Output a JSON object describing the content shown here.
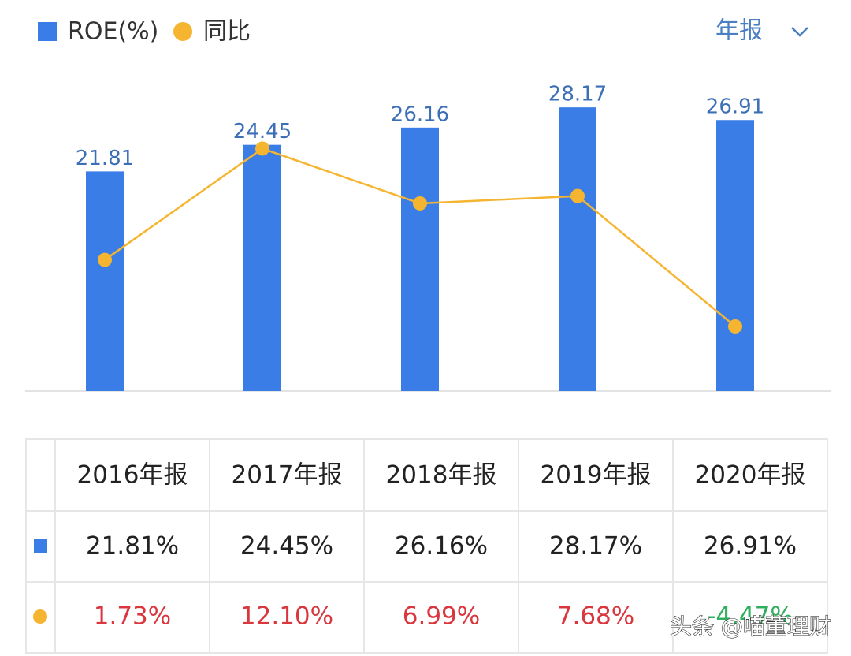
{
  "chart_data": {
    "type": "bar-line",
    "categories": [
      "2016年报",
      "2017年报",
      "2018年报",
      "2019年报",
      "2020年报"
    ],
    "series": [
      {
        "name": "ROE(%)",
        "color": "#3a7de6",
        "values": [
          21.81,
          24.45,
          26.16,
          28.17,
          26.91
        ],
        "value_labels": [
          "21.81%",
          "24.45%",
          "26.16%",
          "28.17%",
          "26.91%"
        ]
      },
      {
        "name": "同比",
        "color": "#f5b531",
        "axis": "y2",
        "values": [
          1.73,
          12.1,
          6.99,
          7.68,
          -4.47
        ],
        "value_labels": [
          "1.73%",
          "12.10%",
          "6.99%",
          "7.68%",
          "-4.47%"
        ]
      }
    ],
    "ylim": [
      0,
      31
    ],
    "y2lim": [
      -10.5,
      18.6
    ]
  },
  "period_selector": "年报",
  "watermark": "头条 @喵董理财"
}
